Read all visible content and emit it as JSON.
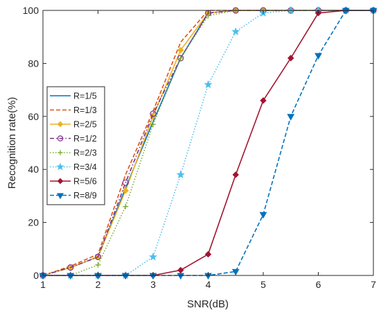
{
  "chart_data": {
    "type": "line",
    "title": "",
    "xlabel": "SNR(dB)",
    "ylabel": "Recognition rate(%)",
    "xlim": [
      1,
      7
    ],
    "ylim": [
      0,
      100
    ],
    "xticks": [
      "1",
      "2",
      "3",
      "4",
      "5",
      "6",
      "7"
    ],
    "yticks": [
      "0",
      "20",
      "40",
      "60",
      "80",
      "100"
    ],
    "grid": false,
    "legend_position": "middle-left",
    "x": [
      1,
      1.5,
      2,
      2.5,
      3,
      3.5,
      4,
      4.5,
      5,
      5.5,
      6,
      6.5,
      7
    ],
    "series": [
      {
        "name": "R=1/5",
        "color": "#0072BD",
        "dash": "solid",
        "marker": "none",
        "values": [
          0,
          3,
          7,
          33,
          58,
          82,
          99,
          100,
          100,
          100,
          100,
          100,
          100
        ]
      },
      {
        "name": "R=1/3",
        "color": "#D95319",
        "dash": "dashed",
        "marker": "none",
        "values": [
          0,
          3.5,
          8,
          38,
          62,
          88,
          100,
          100,
          100,
          100,
          100,
          100,
          100
        ]
      },
      {
        "name": "R=2/5",
        "color": "#EDB120",
        "dash": "solid",
        "marker": "diamond",
        "values": [
          0,
          3,
          7,
          32,
          60,
          85,
          99,
          100,
          100,
          100,
          100,
          100,
          100
        ]
      },
      {
        "name": "R=1/2",
        "color": "#7E2F8E",
        "dash": "dashdot",
        "marker": "circle",
        "values": [
          0,
          3,
          7,
          35,
          61,
          82,
          99,
          100,
          100,
          100,
          100,
          100,
          100
        ]
      },
      {
        "name": "R=2/3",
        "color": "#77AC30",
        "dash": "dotted",
        "marker": "plus",
        "values": [
          0,
          0,
          4,
          26,
          57,
          82,
          98,
          100,
          100,
          100,
          100,
          100,
          100
        ]
      },
      {
        "name": "R=3/4",
        "color": "#4DBEEE",
        "dash": "dotted",
        "marker": "star",
        "values": [
          0,
          0,
          0,
          0,
          7,
          38,
          72,
          92,
          99,
          100,
          100,
          100,
          100
        ]
      },
      {
        "name": "R=5/6",
        "color": "#A2142F",
        "dash": "solid",
        "marker": "diamond",
        "values": [
          0,
          0,
          0,
          0,
          0,
          2,
          8,
          38,
          66,
          82,
          99,
          100,
          100
        ]
      },
      {
        "name": "R=8/9",
        "color": "#0072BD",
        "dash": "dashed",
        "marker": "triangle-down",
        "values": [
          0,
          0,
          0,
          0,
          0,
          0,
          0,
          1.5,
          23,
          60,
          83,
          100,
          100
        ]
      }
    ]
  }
}
